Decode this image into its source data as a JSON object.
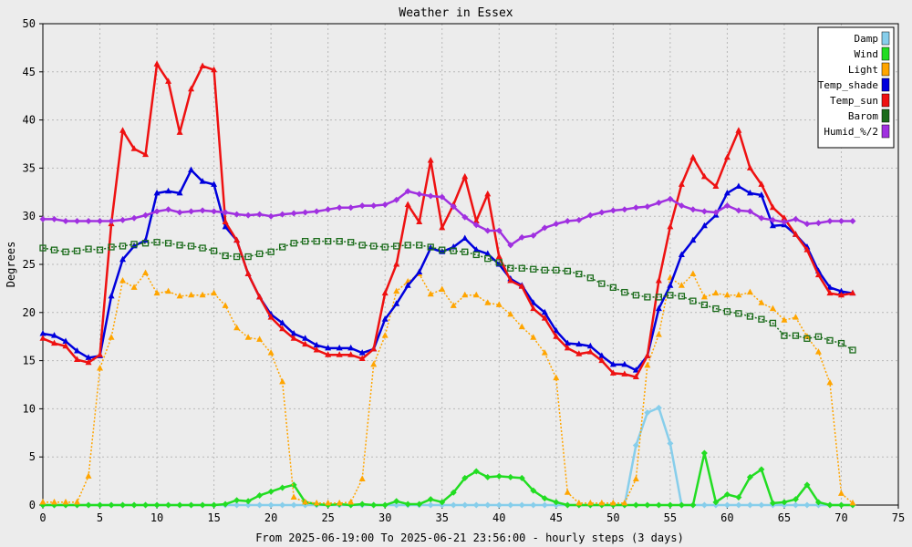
{
  "chart_data": {
    "type": "line",
    "title": "Weather in Essex",
    "xlabel": "From 2025-06-19:00 To 2025-06-21 23:56:00 - hourly steps (3 days)",
    "ylabel": "Degrees",
    "xlim": [
      0,
      75
    ],
    "ylim": [
      0,
      50
    ],
    "x_ticks": [
      0,
      5,
      10,
      15,
      20,
      25,
      30,
      35,
      40,
      45,
      50,
      55,
      60,
      65,
      70,
      75
    ],
    "y_ticks": [
      0,
      5,
      10,
      15,
      20,
      25,
      30,
      35,
      40,
      45,
      50
    ],
    "grid": true,
    "legend_position": "top-right",
    "series": [
      {
        "name": "Damp",
        "color": "#87ceeb",
        "marker": "diamond",
        "values": [
          0,
          0,
          0,
          0,
          0,
          0,
          0,
          0,
          0,
          0,
          0,
          0,
          0,
          0,
          0,
          0,
          0,
          0,
          0,
          0,
          0,
          0,
          0,
          0,
          0,
          0,
          0,
          0,
          0,
          0,
          0,
          0,
          0,
          0,
          0,
          0,
          0,
          0,
          0,
          0,
          0,
          0,
          0,
          0,
          0,
          0,
          0,
          0,
          0,
          0,
          0,
          0,
          6.2,
          9.6,
          10.1,
          6.4,
          0,
          0,
          0,
          0,
          0,
          0,
          0,
          0,
          0,
          0,
          0,
          0,
          0,
          0,
          0,
          0
        ]
      },
      {
        "name": "Wind",
        "color": "#22dd22",
        "marker": "diamond",
        "values": [
          0,
          0,
          0,
          0,
          0,
          0,
          0,
          0,
          0,
          0,
          0,
          0,
          0,
          0,
          0,
          0,
          0.1,
          0.5,
          0.4,
          1.0,
          1.4,
          1.8,
          2.1,
          0.3,
          0.1,
          0,
          0.1,
          0,
          0.1,
          0,
          0,
          0.4,
          0.1,
          0.1,
          0.6,
          0.3,
          1.3,
          2.8,
          3.5,
          2.9,
          3.0,
          2.9,
          2.8,
          1.5,
          0.7,
          0.3,
          0,
          0,
          0,
          0,
          0,
          0,
          0,
          0,
          0,
          0,
          0,
          0,
          5.4,
          0.3,
          1.1,
          0.8,
          2.9,
          3.7,
          0.2,
          0.3,
          0.6,
          2.1,
          0.3,
          0,
          0,
          0
        ]
      },
      {
        "name": "Light",
        "color": "#ffa500",
        "marker": "triangle",
        "values": [
          0.3,
          0.3,
          0.3,
          0.3,
          3.0,
          14.2,
          17.4,
          23.3,
          22.6,
          24.1,
          22.0,
          22.2,
          21.7,
          21.8,
          21.8,
          22.0,
          20.7,
          18.4,
          17.4,
          17.2,
          15.8,
          12.8,
          0.8,
          0.3,
          0.2,
          0.2,
          0.2,
          0.3,
          2.7,
          14.6,
          17.6,
          22.2,
          23.2,
          24.0,
          21.9,
          22.4,
          20.7,
          21.8,
          21.8,
          21.0,
          20.8,
          19.8,
          18.5,
          17.4,
          15.8,
          13.2,
          1.3,
          0.2,
          0.2,
          0.2,
          0.2,
          0.2,
          2.7,
          14.5,
          17.7,
          23.6,
          22.8,
          24.0,
          21.6,
          22.0,
          21.8,
          21.8,
          22.1,
          21.0,
          20.4,
          19.2,
          19.5,
          17.5,
          15.9,
          12.7,
          1.2,
          0.2
        ]
      },
      {
        "name": "Temp_shade",
        "color": "#0000dd",
        "marker": "triangle",
        "values": [
          17.8,
          17.6,
          17.0,
          16.0,
          15.3,
          15.5,
          21.7,
          25.5,
          26.9,
          27.5,
          32.4,
          32.6,
          32.4,
          34.8,
          33.6,
          33.3,
          28.9,
          27.5,
          24.0,
          21.6,
          19.8,
          18.9,
          17.8,
          17.3,
          16.6,
          16.3,
          16.3,
          16.3,
          15.8,
          16.2,
          19.3,
          20.9,
          22.8,
          24.2,
          26.7,
          26.3,
          26.8,
          27.7,
          26.5,
          26.1,
          25.0,
          23.5,
          22.8,
          21.0,
          20.0,
          18.1,
          16.8,
          16.7,
          16.5,
          15.5,
          14.6,
          14.6,
          14.0,
          15.5,
          20.4,
          22.8,
          26.0,
          27.5,
          29.0,
          30.1,
          32.4,
          33.1,
          32.4,
          32.2,
          29.0,
          29.1,
          28.1,
          26.8,
          24.3,
          22.6,
          22.2,
          22.0
        ]
      },
      {
        "name": "Temp_sun",
        "color": "#ee1111",
        "marker": "triangle",
        "values": [
          17.3,
          16.8,
          16.5,
          15.1,
          14.8,
          15.6,
          29.2,
          38.9,
          37.0,
          36.4,
          45.8,
          44.0,
          38.7,
          43.2,
          45.6,
          45.2,
          29.4,
          27.5,
          24.0,
          21.6,
          19.5,
          18.3,
          17.3,
          16.7,
          16.1,
          15.6,
          15.6,
          15.6,
          15.2,
          16.2,
          22.0,
          25.0,
          31.2,
          29.4,
          35.8,
          28.8,
          31.2,
          34.1,
          29.5,
          32.3,
          25.8,
          23.3,
          22.7,
          20.4,
          19.4,
          17.5,
          16.3,
          15.7,
          15.9,
          15.0,
          13.7,
          13.6,
          13.3,
          15.5,
          23.3,
          28.9,
          33.3,
          36.1,
          34.1,
          33.1,
          36.1,
          38.9,
          35.0,
          33.3,
          30.9,
          29.8,
          28.1,
          26.5,
          23.9,
          22.0,
          21.8,
          22.0
        ]
      },
      {
        "name": "Barom",
        "color": "#1a6b1a",
        "marker": "square",
        "values": [
          26.7,
          26.5,
          26.3,
          26.4,
          26.6,
          26.5,
          26.8,
          26.9,
          27.1,
          27.2,
          27.3,
          27.2,
          27.0,
          26.9,
          26.7,
          26.4,
          25.9,
          25.8,
          25.8,
          26.1,
          26.3,
          26.8,
          27.2,
          27.4,
          27.4,
          27.4,
          27.4,
          27.3,
          27.0,
          26.9,
          26.8,
          26.9,
          27.0,
          27.0,
          26.8,
          26.5,
          26.4,
          26.3,
          26.0,
          25.6,
          25.2,
          24.6,
          24.6,
          24.5,
          24.4,
          24.4,
          24.3,
          24.0,
          23.6,
          23.0,
          22.6,
          22.1,
          21.8,
          21.6,
          21.6,
          21.8,
          21.7,
          21.2,
          20.8,
          20.4,
          20.1,
          19.9,
          19.6,
          19.3,
          18.9,
          17.6,
          17.6,
          17.3,
          17.5,
          17.1,
          16.8,
          16.1
        ]
      },
      {
        "name": "Humid_%/2",
        "color": "#a030e0",
        "marker": "diamond",
        "values": [
          29.7,
          29.7,
          29.5,
          29.5,
          29.5,
          29.5,
          29.5,
          29.6,
          29.8,
          30.1,
          30.5,
          30.7,
          30.4,
          30.5,
          30.6,
          30.5,
          30.4,
          30.2,
          30.1,
          30.2,
          30.0,
          30.2,
          30.3,
          30.4,
          30.5,
          30.7,
          30.9,
          30.9,
          31.1,
          31.1,
          31.2,
          31.7,
          32.6,
          32.3,
          32.1,
          32.0,
          31.0,
          29.9,
          29.1,
          28.5,
          28.5,
          27.0,
          27.8,
          28.0,
          28.8,
          29.2,
          29.5,
          29.6,
          30.1,
          30.4,
          30.6,
          30.7,
          30.9,
          31.0,
          31.4,
          31.8,
          31.1,
          30.7,
          30.5,
          30.4,
          31.1,
          30.6,
          30.5,
          29.8,
          29.6,
          29.4,
          29.7,
          29.2,
          29.3,
          29.5,
          29.5,
          29.5
        ]
      }
    ]
  }
}
